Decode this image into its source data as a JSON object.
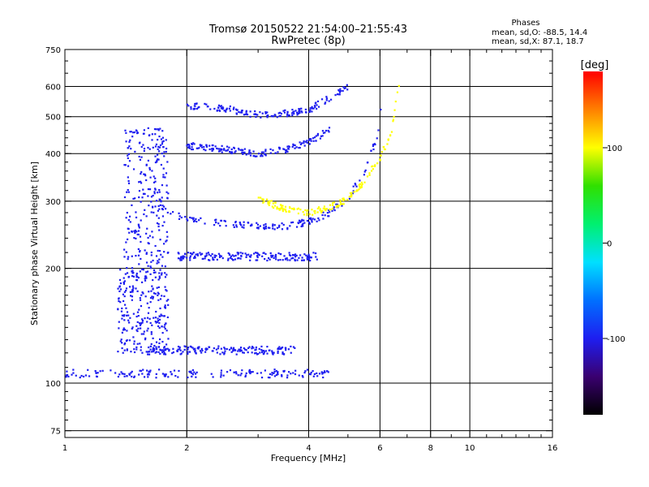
{
  "chart_data": {
    "type": "scatter",
    "title": "Tromsø 20150522 21:54:00–21:55:43",
    "subtitle": "RwPretec (8p)",
    "xlabel": "Frequency [MHz]",
    "ylabel": "Stationary phase Virtual Height [km]",
    "x_scale": "log2",
    "y_scale": "log",
    "xlim": [
      1,
      16
    ],
    "ylim": [
      72,
      750
    ],
    "x_ticks": [
      1,
      2,
      4,
      6,
      8,
      10,
      16
    ],
    "x_tick_labels": [
      "1",
      "2",
      "4",
      "6",
      "8",
      "10",
      "16"
    ],
    "y_ticks": [
      75,
      100,
      200,
      300,
      400,
      500,
      600,
      750
    ],
    "y_tick_labels": [
      "75",
      "100",
      "200",
      "300",
      "400",
      "500",
      "600",
      "750"
    ],
    "grid": true,
    "stats": {
      "heading": "Phases",
      "line_o": "mean, sd,O: -88.5, 14.4",
      "line_x": "mean, sd,X: 87.1, 18.7"
    },
    "colorbar": {
      "label": "[deg]",
      "range": [
        -180,
        180
      ],
      "ticks": [
        100,
        0,
        -100
      ],
      "tick_labels": [
        "100",
        "0",
        "-100"
      ],
      "palette": [
        "#000000",
        "#3a0070",
        "#1e1ef0",
        "#0070ff",
        "#00e0ff",
        "#00f070",
        "#30e000",
        "#ffff00",
        "#ff8000",
        "#ff0000"
      ]
    },
    "series": [
      {
        "group": "E/Es-layer trace",
        "x_range": [
          1.0,
          4.5
        ],
        "y_center": 106,
        "phase": -100
      },
      {
        "group": "sporadic mid trace",
        "x_range": [
          1.6,
          3.7
        ],
        "y_center": 122,
        "phase": -95
      },
      {
        "group": "lower spread",
        "x_range": [
          1.35,
          1.8
        ],
        "y_range": [
          120,
          200
        ],
        "phase": -100
      },
      {
        "group": "F-region spread",
        "x_range": [
          1.4,
          1.8
        ],
        "y_range": [
          200,
          470
        ],
        "phase": -100
      },
      {
        "group": "F O-mode trace",
        "x": [
          1.7,
          2.0,
          2.5,
          3.0,
          3.5,
          4.0,
          4.5,
          5.0,
          5.5,
          5.9,
          6.1
        ],
        "y": [
          290,
          268,
          262,
          258,
          258,
          265,
          280,
          305,
          360,
          440,
          560
        ],
        "phase": -100
      },
      {
        "group": "F X-mode trace",
        "x": [
          3.0,
          3.5,
          4.0,
          4.5,
          5.0,
          5.5,
          6.0,
          6.4,
          6.7
        ],
        "y": [
          305,
          285,
          280,
          288,
          305,
          340,
          390,
          450,
          620
        ],
        "phase": 100
      },
      {
        "group": "multiple reflection 2F",
        "x": [
          2.0,
          2.5,
          3.0,
          3.5,
          4.0,
          4.5,
          5.0
        ],
        "y": [
          535,
          525,
          505,
          510,
          520,
          560,
          600
        ],
        "phase": -100
      },
      {
        "group": "multiple echo",
        "x": [
          2.0,
          2.5,
          3.0,
          3.5,
          4.0,
          4.5
        ],
        "y": [
          420,
          410,
          400,
          410,
          430,
          460
        ],
        "phase": -100
      },
      {
        "group": "band ~215 km",
        "x_range": [
          1.9,
          4.2
        ],
        "y_center": 215,
        "phase": -95
      }
    ]
  }
}
